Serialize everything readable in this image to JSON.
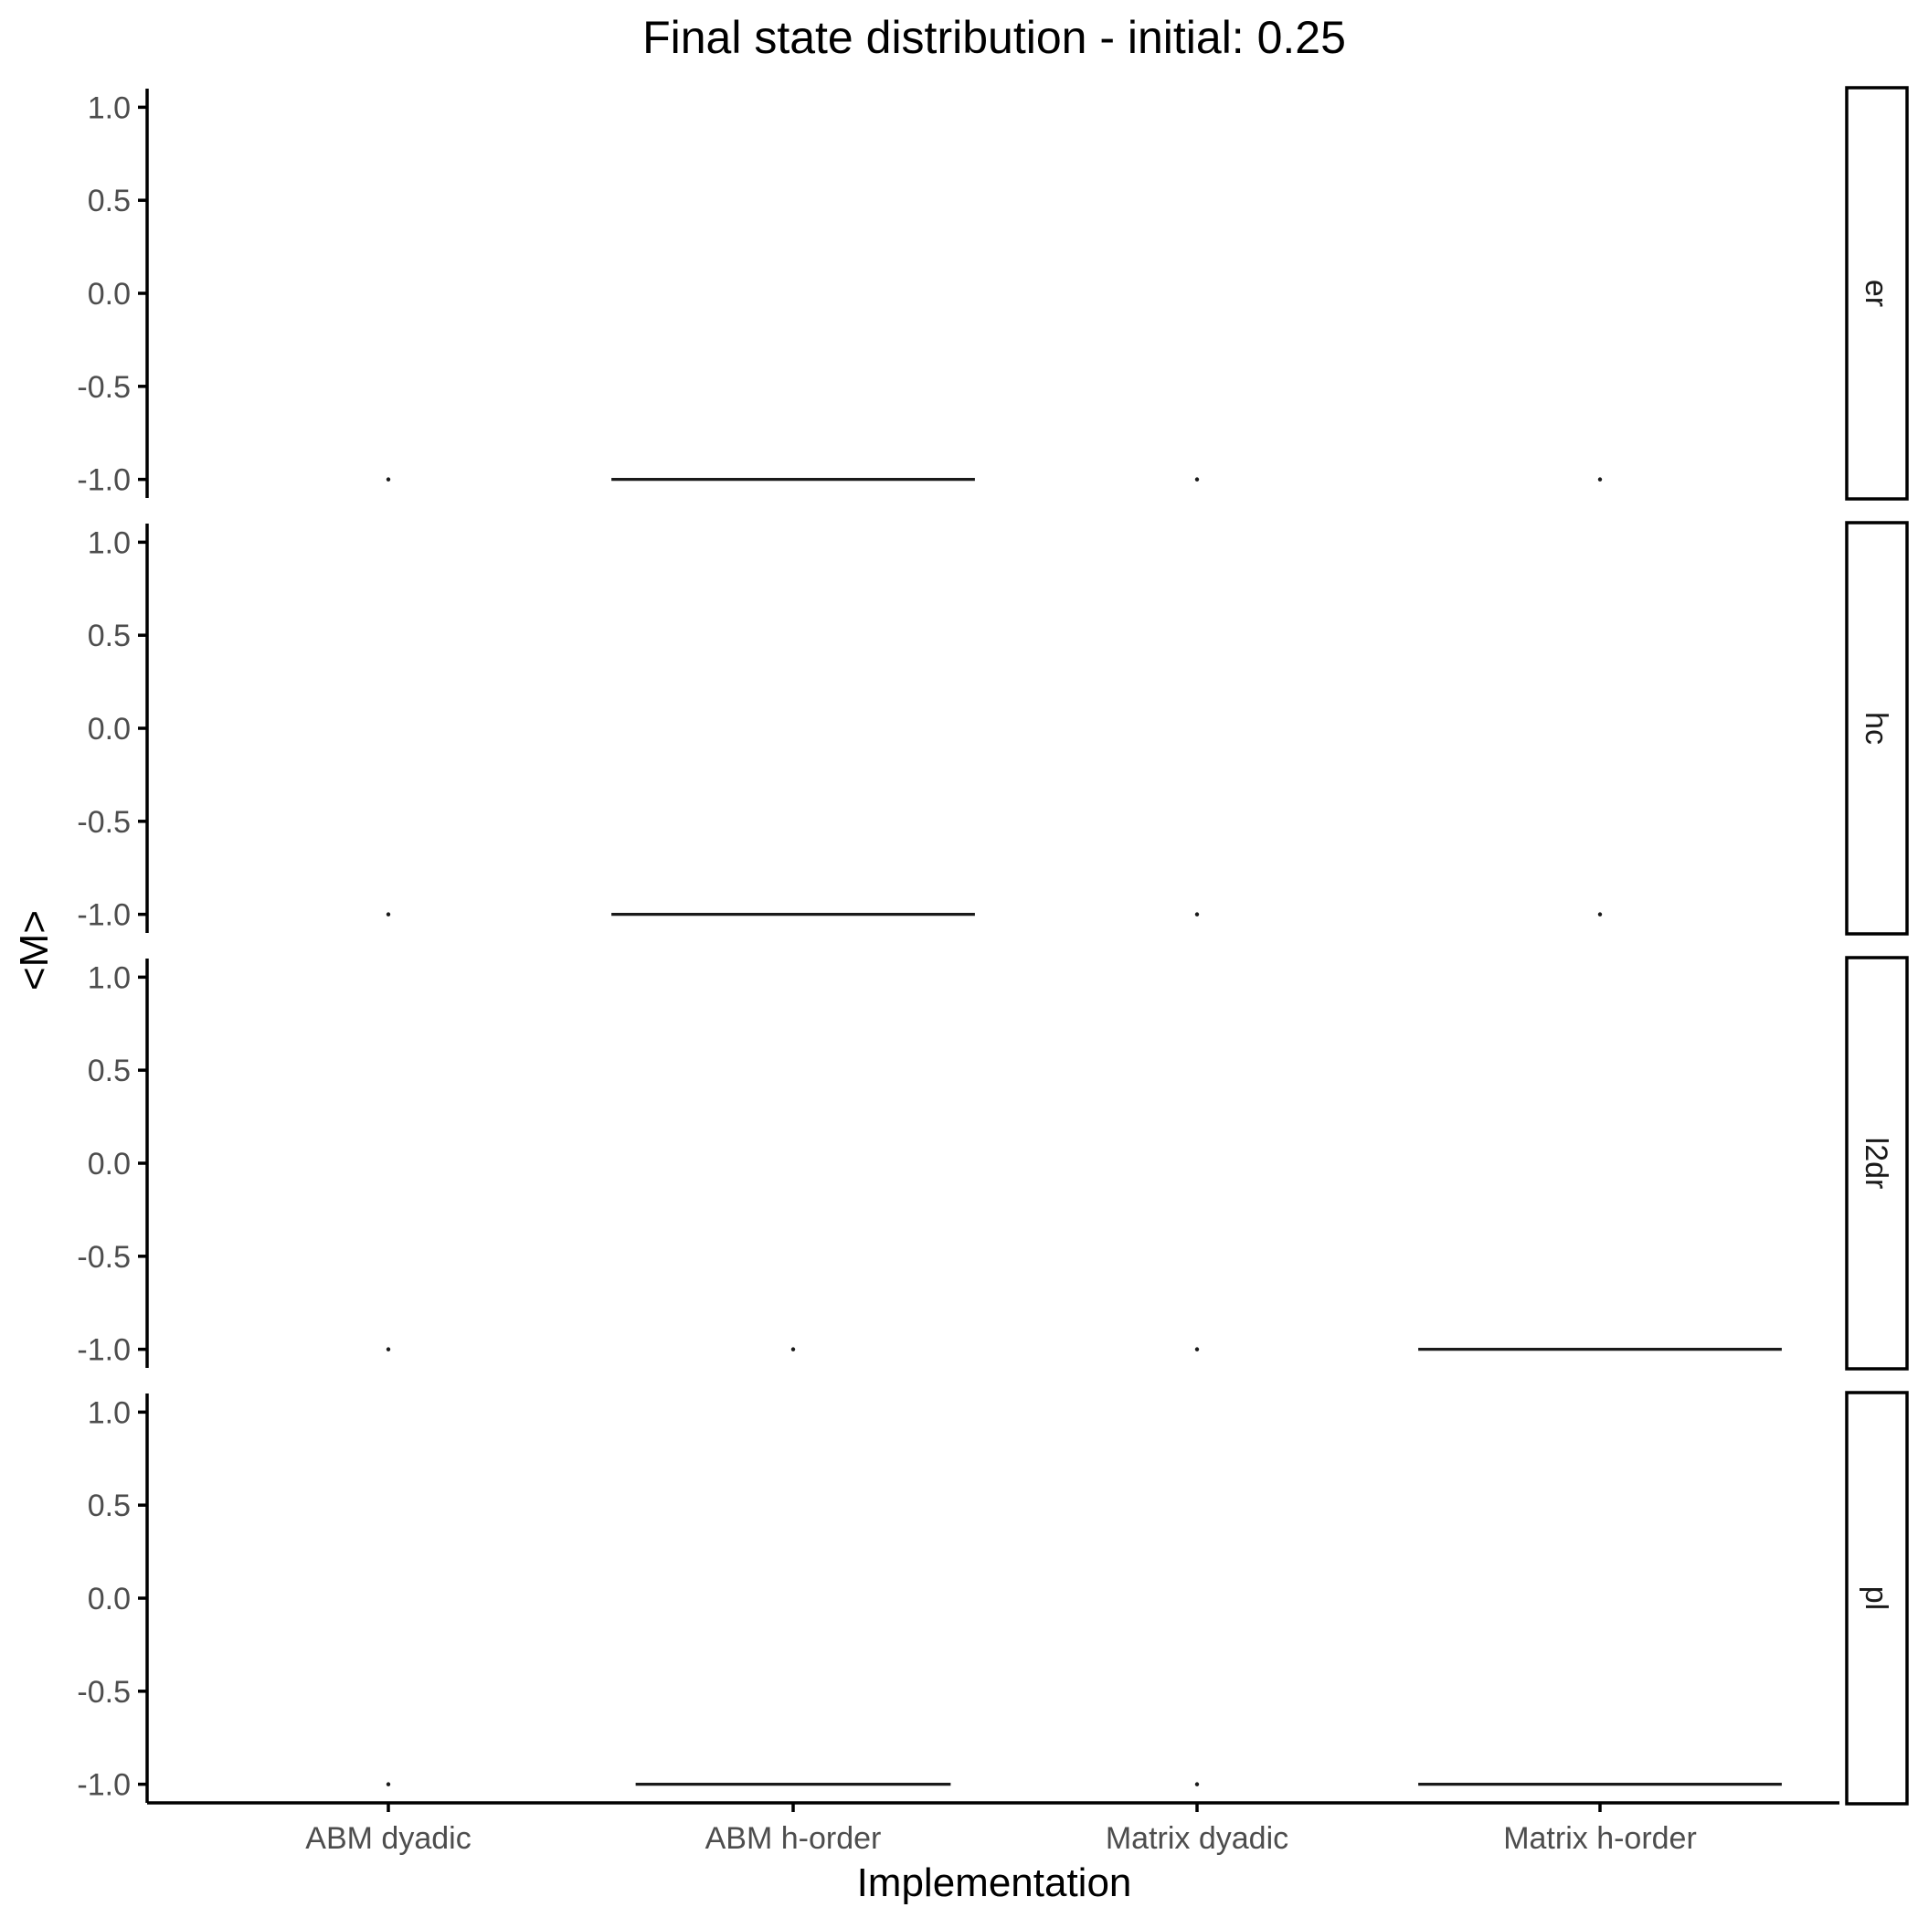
{
  "chart_data": {
    "type": "violin",
    "title": "Final state distribution - initial: 0.25",
    "xlabel": "Implementation",
    "ylabel": "<M>",
    "categories": [
      "ABM dyadic",
      "ABM h-order",
      "Matrix dyadic",
      "Matrix h-order"
    ],
    "yticks": [
      "1.0",
      "0.5",
      "0.0",
      "-0.5",
      "-1.0"
    ],
    "ytick_values": [
      1.0,
      0.5,
      0.0,
      -0.5,
      -1.0
    ],
    "ylim": [
      -1.1,
      1.1
    ],
    "grid": false,
    "facets": [
      {
        "label": "er",
        "values": [
          {
            "category": "ABM dyadic",
            "value": -1.0,
            "width": 0.0
          },
          {
            "category": "ABM h-order",
            "value": -1.0,
            "width": 0.9
          },
          {
            "category": "Matrix dyadic",
            "value": -1.0,
            "width": 0.0
          },
          {
            "category": "Matrix h-order",
            "value": -1.0,
            "width": 0.0
          }
        ]
      },
      {
        "label": "hc",
        "values": [
          {
            "category": "ABM dyadic",
            "value": -1.0,
            "width": 0.0
          },
          {
            "category": "ABM h-order",
            "value": -1.0,
            "width": 0.9
          },
          {
            "category": "Matrix dyadic",
            "value": -1.0,
            "width": 0.0
          },
          {
            "category": "Matrix h-order",
            "value": -1.0,
            "width": 0.0
          }
        ]
      },
      {
        "label": "l2dr",
        "values": [
          {
            "category": "ABM dyadic",
            "value": -1.0,
            "width": 0.0
          },
          {
            "category": "ABM h-order",
            "value": -1.0,
            "width": 0.0
          },
          {
            "category": "Matrix dyadic",
            "value": -1.0,
            "width": 0.0
          },
          {
            "category": "Matrix h-order",
            "value": -1.0,
            "width": 0.9
          }
        ]
      },
      {
        "label": "pl",
        "values": [
          {
            "category": "ABM dyadic",
            "value": -1.0,
            "width": 0.0
          },
          {
            "category": "ABM h-order",
            "value": -1.0,
            "width": 0.78
          },
          {
            "category": "Matrix dyadic",
            "value": -1.0,
            "width": 0.0
          },
          {
            "category": "Matrix h-order",
            "value": -1.0,
            "width": 0.9
          }
        ]
      }
    ]
  }
}
